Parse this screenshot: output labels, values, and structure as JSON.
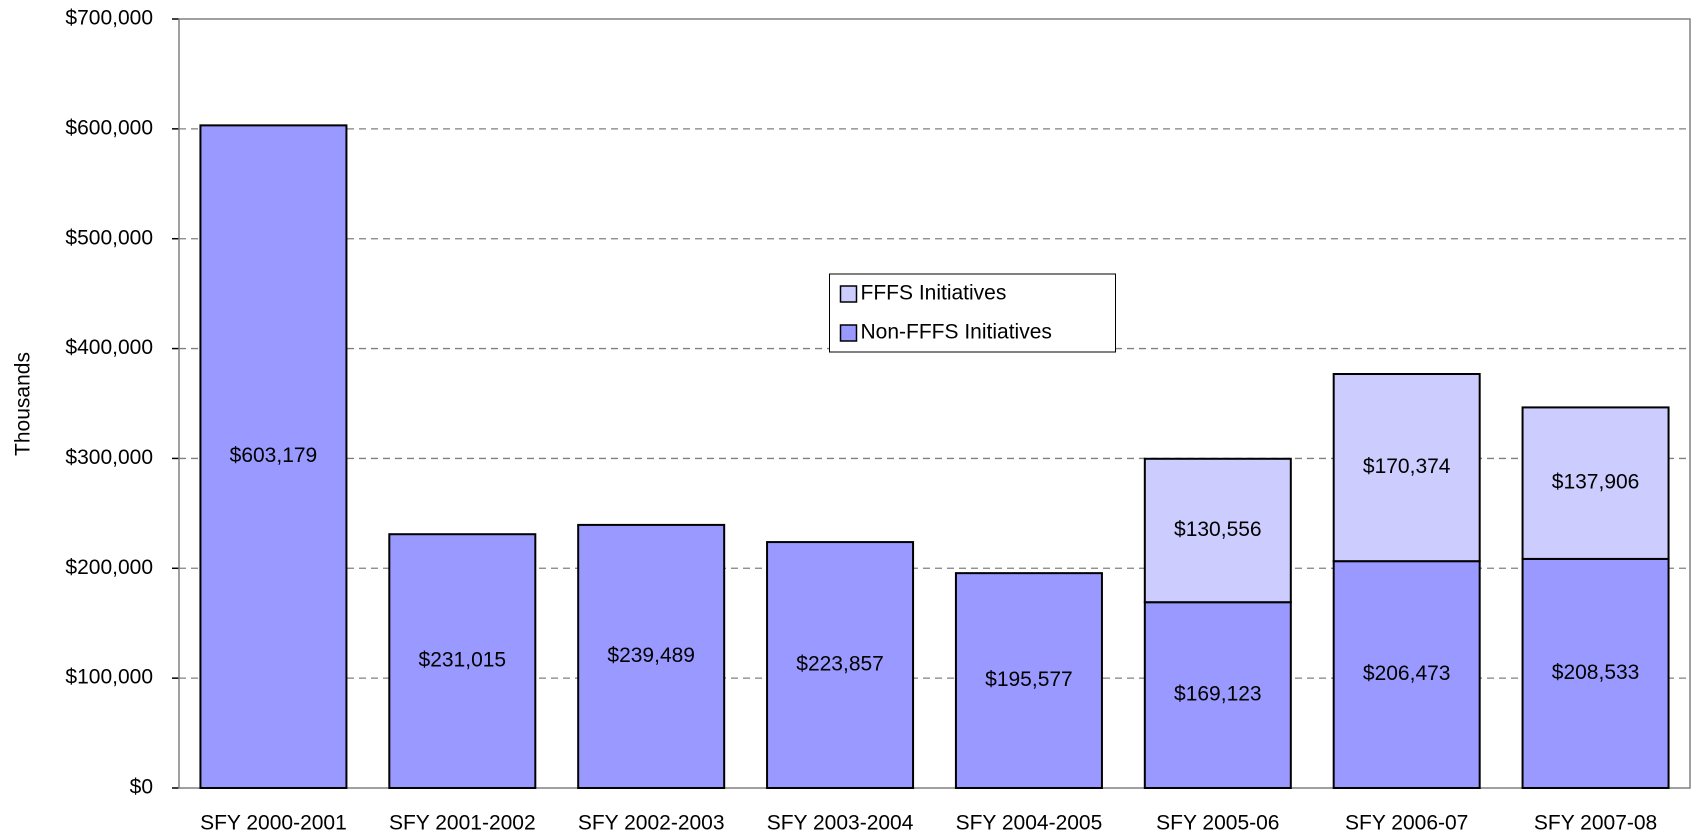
{
  "chart_data": {
    "type": "stacked_bar",
    "ylabel": "Thousands",
    "categories": [
      "SFY 2000-2001",
      "SFY 2001-2002",
      "SFY 2002-2003",
      "SFY 2003-2004",
      "SFY 2004-2005",
      "SFY 2005-06",
      "SFY 2006-07",
      "SFY 2007-08"
    ],
    "series": [
      {
        "name": "Non-FFFS Initiatives",
        "color": "#9999ff",
        "values": [
          603179,
          231015,
          239489,
          223857,
          195577,
          169123,
          206473,
          208533
        ],
        "value_labels": [
          "$603,179",
          "$231,015",
          "$239,489",
          "$223,857",
          "$195,577",
          "$169,123",
          "$206,473",
          "$208,533"
        ]
      },
      {
        "name": "FFFS Initiatives",
        "color": "#ccccff",
        "values": [
          null,
          null,
          null,
          null,
          null,
          130556,
          170374,
          137906
        ],
        "value_labels": [
          null,
          null,
          null,
          null,
          null,
          "$130,556",
          "$170,374",
          "$137,906"
        ]
      }
    ],
    "ylim": [
      0,
      700000
    ],
    "yticks": [
      {
        "value": 0,
        "label": "$0"
      },
      {
        "value": 100000,
        "label": "$100,000"
      },
      {
        "value": 200000,
        "label": "$200,000"
      },
      {
        "value": 300000,
        "label": "$300,000"
      },
      {
        "value": 400000,
        "label": "$400,000"
      },
      {
        "value": 500000,
        "label": "$500,000"
      },
      {
        "value": 600000,
        "label": "$600,000"
      },
      {
        "value": 700000,
        "label": "$700,000"
      }
    ],
    "grid": true,
    "legend": "center"
  }
}
